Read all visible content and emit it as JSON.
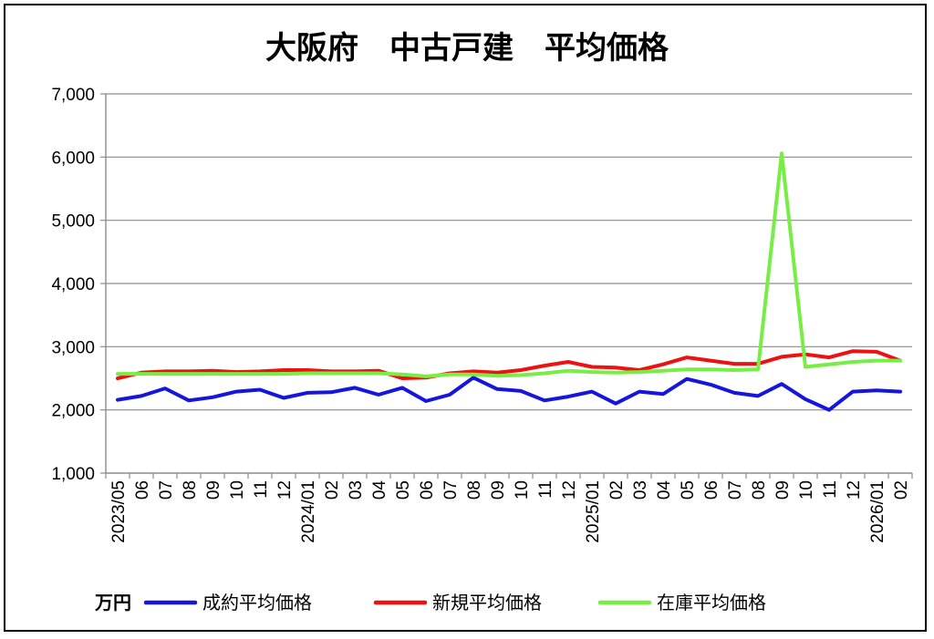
{
  "chart_data": {
    "type": "line",
    "title": "大阪府　中古戸建　平均価格",
    "unit_label": "万円",
    "ylim": [
      1000,
      7000
    ],
    "yticks": [
      1000,
      2000,
      3000,
      4000,
      5000,
      6000,
      7000
    ],
    "ytick_labels": [
      "1,000",
      "2,000",
      "3,000",
      "4,000",
      "5,000",
      "6,000",
      "7,000"
    ],
    "grid": true,
    "legend_position": "bottom",
    "x_labels": [
      "2023/05",
      "06",
      "07",
      "08",
      "09",
      "10",
      "11",
      "12",
      "2024/01",
      "02",
      "03",
      "04",
      "05",
      "06",
      "07",
      "08",
      "09",
      "10",
      "11",
      "12",
      "2025/01",
      "02",
      "03",
      "04",
      "05",
      "06",
      "07",
      "08",
      "09",
      "10",
      "11",
      "12",
      "2026/01",
      "02"
    ],
    "series": [
      {
        "name": "成約平均価格",
        "color": "#1515dd",
        "values": [
          2160,
          2220,
          2340,
          2150,
          2200,
          2290,
          2320,
          2190,
          2270,
          2280,
          2350,
          2240,
          2350,
          2140,
          2240,
          2510,
          2330,
          2300,
          2150,
          2210,
          2290,
          2100,
          2290,
          2250,
          2490,
          2400,
          2270,
          2220,
          2410,
          2170,
          2000,
          2290,
          2310,
          2290
        ]
      },
      {
        "name": "新規平均価格",
        "color": "#ee1111",
        "values": [
          2500,
          2590,
          2610,
          2610,
          2620,
          2600,
          2610,
          2630,
          2630,
          2610,
          2610,
          2620,
          2500,
          2510,
          2580,
          2610,
          2590,
          2630,
          2700,
          2760,
          2680,
          2670,
          2630,
          2720,
          2830,
          2780,
          2730,
          2730,
          2840,
          2880,
          2830,
          2930,
          2920,
          2780
        ]
      },
      {
        "name": "在庫平均価格",
        "color": "#77ee44",
        "values": [
          2570,
          2570,
          2570,
          2570,
          2570,
          2570,
          2570,
          2570,
          2580,
          2580,
          2580,
          2580,
          2560,
          2530,
          2560,
          2560,
          2540,
          2550,
          2580,
          2620,
          2600,
          2590,
          2600,
          2620,
          2640,
          2640,
          2630,
          2640,
          6060,
          2680,
          2720,
          2760,
          2780,
          2780
        ]
      }
    ]
  }
}
